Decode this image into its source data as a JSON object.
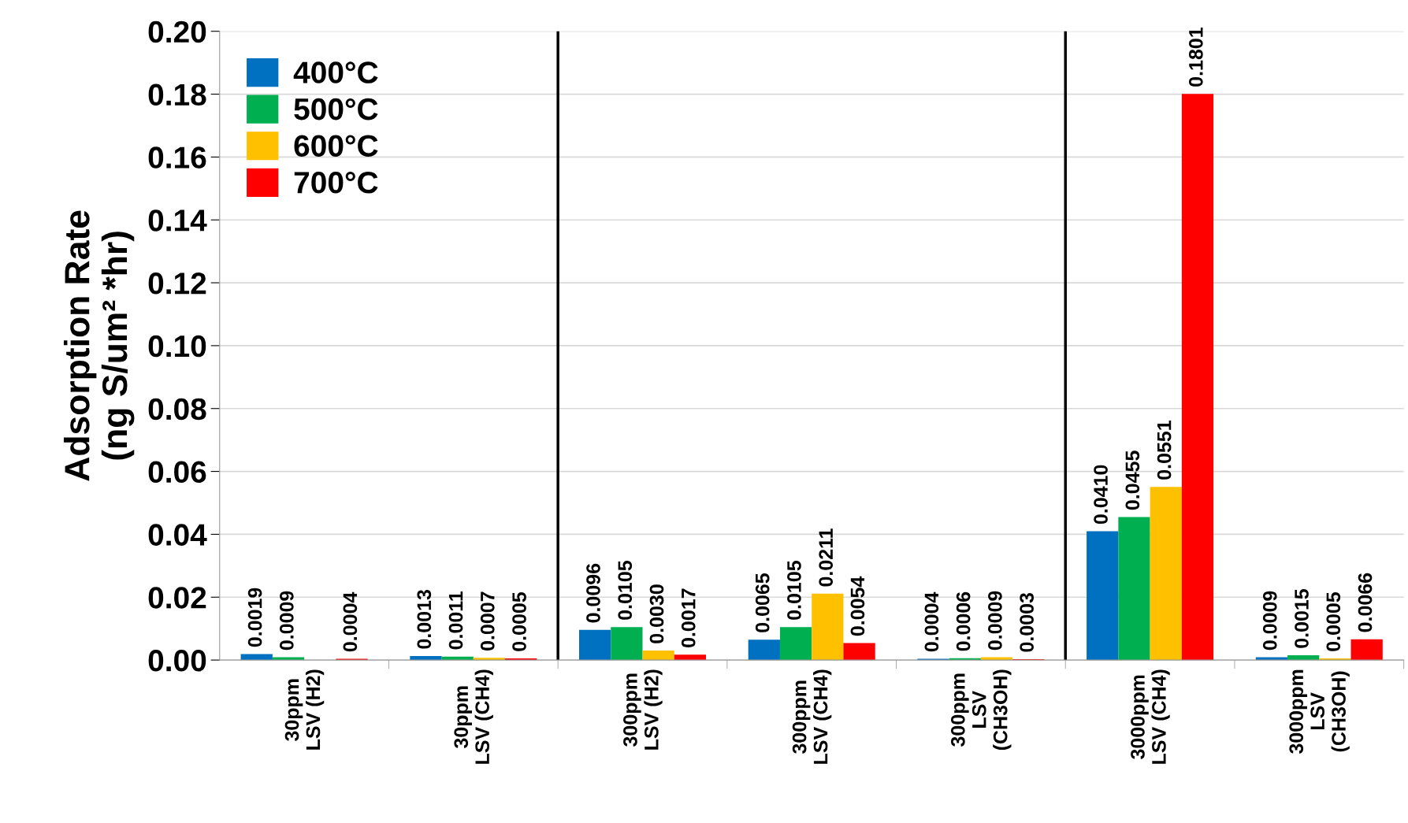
{
  "chart_data": {
    "type": "bar",
    "ylabel": "Adsorption Rate\n(ng S/um² *hr)",
    "categories": [
      "30ppm\nLSV (H2)",
      "30ppm\nLSV (CH4)",
      "300ppm\nLSV (H2)",
      "300ppm\nLSV (CH4)",
      "300ppm\nLSV\n(CH3OH)",
      "3000ppm\nLSV (CH4)",
      "3000ppm\nLSV\n(CH3OH)"
    ],
    "series": [
      {
        "name": "400°C",
        "color": "#0070c0",
        "values": [
          0.0019,
          0.0013,
          0.0096,
          0.0065,
          0.0004,
          0.041,
          0.0009
        ],
        "value_labels": [
          "0.0019",
          "0.0013",
          "0.0096",
          "0.0065",
          "0.0004",
          "0.0410",
          "0.0009"
        ]
      },
      {
        "name": "500°C",
        "color": "#00b050",
        "values": [
          0.0009,
          0.0011,
          0.0105,
          0.0105,
          0.0006,
          0.0455,
          0.0015
        ],
        "value_labels": [
          "0.0009",
          "0.0011",
          "0.0105",
          "0.0105",
          "0.0006",
          "0.0455",
          "0.0015"
        ]
      },
      {
        "name": "600°C",
        "color": "#ffc000",
        "values": [
          null,
          0.0007,
          0.003,
          0.0211,
          0.0009,
          0.0551,
          0.0005
        ],
        "value_labels": [
          null,
          "0.0007",
          "0.0030",
          "0.0211",
          "0.0009",
          "0.0551",
          "0.0005"
        ]
      },
      {
        "name": "700°C",
        "color": "#ff0000",
        "values": [
          0.0004,
          0.0005,
          0.0017,
          0.0054,
          0.0003,
          0.1801,
          0.0066
        ],
        "value_labels": [
          "0.0004",
          "0.0005",
          "0.0017",
          "0.0054",
          "0.0003",
          "0.1801",
          "0.0066"
        ]
      }
    ],
    "ylim": [
      0,
      0.2
    ],
    "yticks": [
      {
        "value": 0,
        "label": "0.00"
      },
      {
        "value": 0.02,
        "label": "0.02"
      },
      {
        "value": 0.04,
        "label": "0.04"
      },
      {
        "value": 0.06,
        "label": "0.06"
      },
      {
        "value": 0.08,
        "label": "0.08"
      },
      {
        "value": 0.1,
        "label": "0.10"
      },
      {
        "value": 0.12,
        "label": "0.12"
      },
      {
        "value": 0.14,
        "label": "0.14"
      },
      {
        "value": 0.16,
        "label": "0.16"
      },
      {
        "value": 0.18,
        "label": "0.18"
      },
      {
        "value": 0.2,
        "label": "0.20"
      }
    ],
    "grid": "y",
    "legend": "top left"
  }
}
